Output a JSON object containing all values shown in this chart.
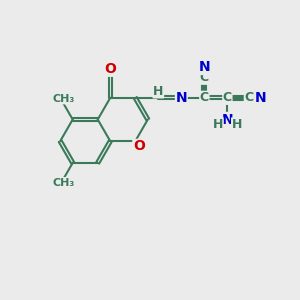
{
  "bg_color": "#ebebeb",
  "bond_color": "#3a7a5a",
  "bond_width": 1.5,
  "atom_colors": {
    "N": "#0000cc",
    "O": "#cc0000",
    "C": "#3a7a5a",
    "H": "#3a7a5a"
  },
  "font_size": 9,
  "dbo": 0.055
}
